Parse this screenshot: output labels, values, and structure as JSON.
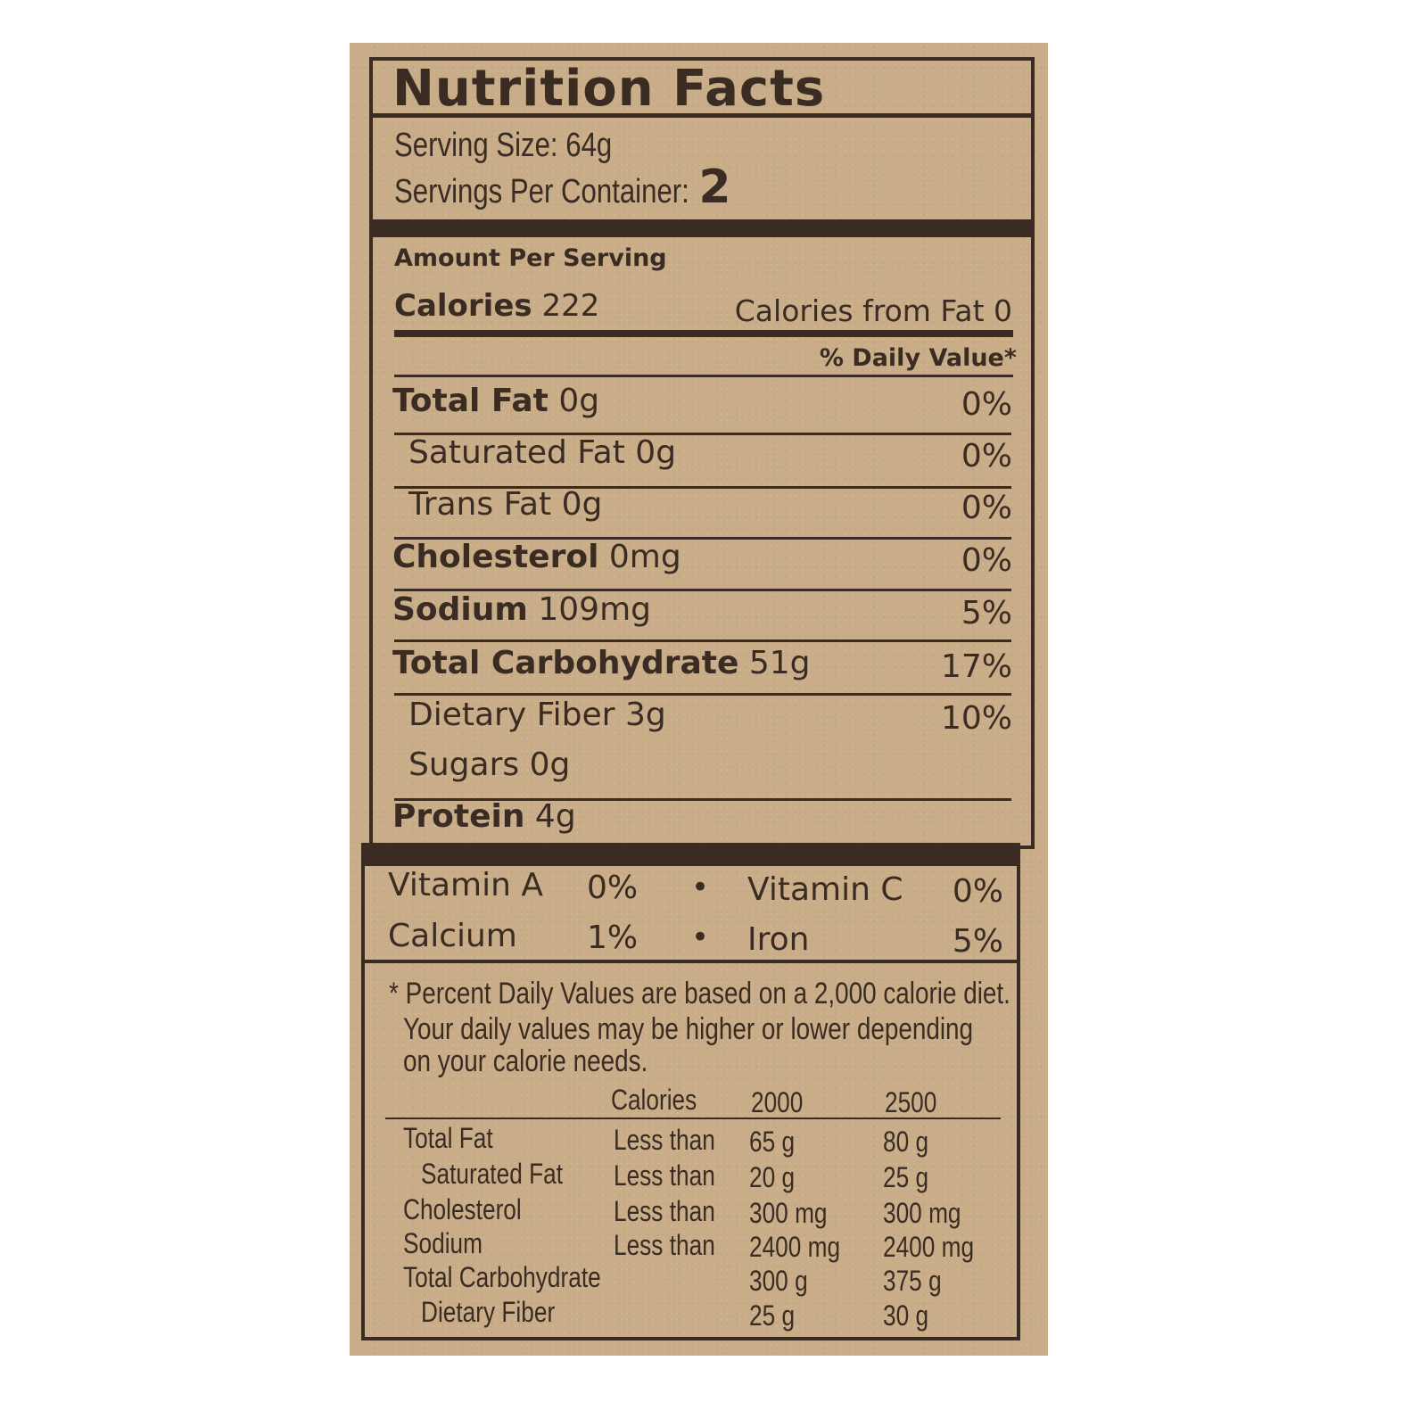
{
  "title": "Nutrition Facts",
  "serving_size": "Serving Size: 64g",
  "servings_per_container_label": "Servings Per Container:",
  "servings_per_container": "2",
  "amount_per_serving": "Amount Per Serving",
  "calories_label": "Calories",
  "calories": "222",
  "calories_from_fat": "Calories from Fat 0",
  "daily_value_header": "% Daily Value*",
  "nutrients": [
    {
      "name": "Total Fat",
      "amount": "0g",
      "dv": "0%"
    },
    {
      "name": "Saturated Fat",
      "amount": "0g",
      "dv": "0%"
    },
    {
      "name": "Trans Fat",
      "amount": "0g",
      "dv": "0%"
    },
    {
      "name": "Cholesterol",
      "amount": "0mg",
      "dv": "0%"
    },
    {
      "name": "Sodium",
      "amount": "109mg",
      "dv": "5%"
    },
    {
      "name": "Total Carbohydrate",
      "amount": "51g",
      "dv": "17%"
    },
    {
      "name": "Dietary Fiber",
      "amount": "3g",
      "dv": "10%"
    },
    {
      "name": "Sugars",
      "amount": "0g",
      "dv": ""
    },
    {
      "name": "Protein",
      "amount": "4g",
      "dv": ""
    }
  ],
  "vitamins": [
    {
      "name": "Vitamin A",
      "dv": "0%"
    },
    {
      "name": "Vitamin C",
      "dv": "0%"
    },
    {
      "name": "Calcium",
      "dv": "1%"
    },
    {
      "name": "Iron",
      "dv": "5%"
    }
  ],
  "footnote": [
    "* Percent Daily Values are based on a 2,000 calorie diet.",
    "Your daily  values may be higher or lower depending",
    "on your calorie needs."
  ],
  "reference_table": {
    "headers": [
      "Calories",
      "2000",
      "2500"
    ],
    "rows": [
      {
        "name": "Total Fat",
        "qual": "Less than",
        "v2000": "65 g",
        "v2500": "80 g"
      },
      {
        "name": "Saturated Fat",
        "qual": "Less than",
        "v2000": "20 g",
        "v2500": "25 g"
      },
      {
        "name": "Cholesterol",
        "qual": "Less than",
        "v2000": "300 mg",
        "v2500": "300 mg"
      },
      {
        "name": "Sodium",
        "qual": "Less than",
        "v2000": "2400 mg",
        "v2500": "2400 mg"
      },
      {
        "name": "Total Carbohydrate",
        "qual": "",
        "v2000": "300 g",
        "v2500": "375 g"
      },
      {
        "name": "Dietary Fiber",
        "qual": "",
        "v2000": "25 g",
        "v2500": "30 g"
      }
    ]
  },
  "colors": {
    "kraft": "#c8ad88",
    "ink": "#3a2c23"
  }
}
